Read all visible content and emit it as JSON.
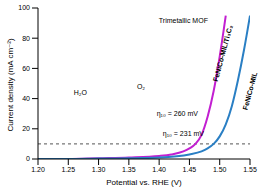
{
  "chart_data": {
    "type": "line",
    "xlabel": "Potential vs. RHE (V)",
    "ylabel": "Current density (mA cm⁻²)",
    "xlim": [
      1.2,
      1.55
    ],
    "ylim": [
      0,
      100
    ],
    "xticks": [
      {
        "value": 1.2,
        "label": "1.20"
      },
      1.25,
      {
        "value": 1.3,
        "label": "1.30"
      },
      1.35,
      {
        "value": 1.4,
        "label": "1.40"
      },
      1.45,
      {
        "value": 1.5,
        "label": "1.50"
      },
      1.55
    ],
    "yticks": [
      0,
      20,
      40,
      60,
      80,
      100
    ],
    "legend": false,
    "grid": false,
    "reference_y": 10,
    "series": [
      {
        "name": "FeNiCo-MIL/Ti₃C₂",
        "color": "#c21fd1",
        "x": [
          1.2,
          1.25,
          1.3,
          1.35,
          1.4,
          1.42,
          1.44,
          1.45,
          1.46,
          1.47,
          1.48,
          1.49,
          1.5,
          1.51
        ],
        "values": [
          0,
          0,
          0.5,
          1,
          2,
          3,
          5,
          7,
          10,
          16,
          28,
          45,
          68,
          95
        ]
      },
      {
        "name": "FeNiCo-MIL",
        "color": "#2a7fc4",
        "x": [
          1.2,
          1.25,
          1.3,
          1.35,
          1.4,
          1.45,
          1.47,
          1.48,
          1.49,
          1.5,
          1.51,
          1.52,
          1.53,
          1.54,
          1.55
        ],
        "values": [
          0,
          0,
          0.3,
          0.5,
          1,
          3,
          5,
          7,
          10,
          15,
          23,
          35,
          52,
          72,
          95
        ]
      }
    ],
    "annotations": [
      {
        "text": "η₁₀ = 260 mV",
        "x": 1.43,
        "y": 30
      },
      {
        "text": "η₁₀ = 231 mV",
        "x": 1.44,
        "y": 17
      },
      {
        "text": "H₂O",
        "x": 1.27,
        "y": 44
      },
      {
        "text": "O₂",
        "x": 1.37,
        "y": 48
      },
      {
        "text": "Trimetallic MOF",
        "x": 1.44,
        "y": 92
      }
    ]
  }
}
